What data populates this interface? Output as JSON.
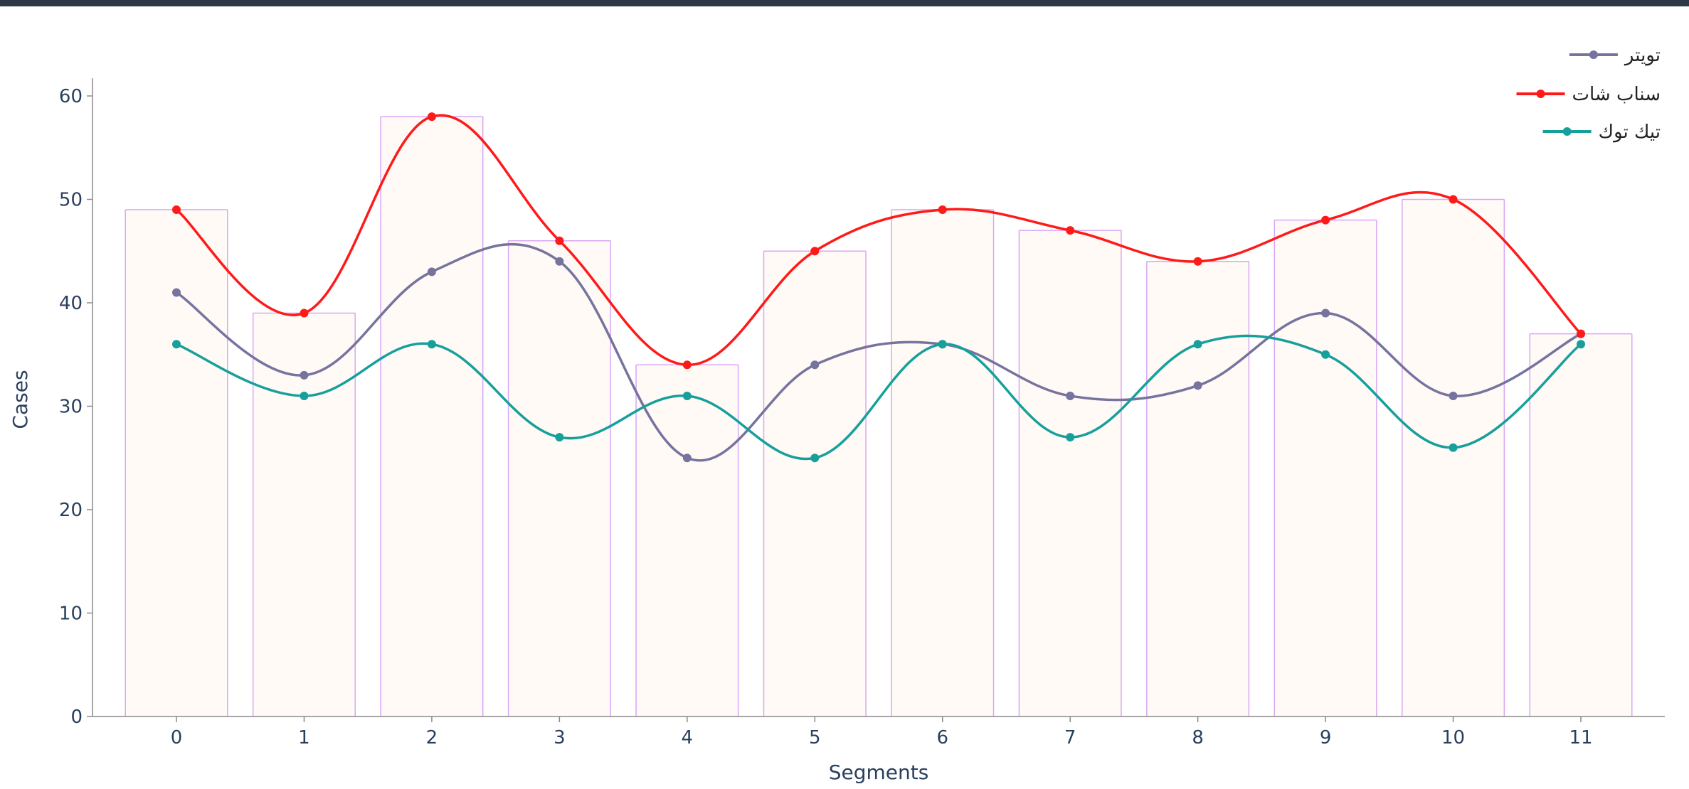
{
  "chart_data": {
    "type": "line",
    "xlabel": "Segments",
    "ylabel": "Cases",
    "categories": [
      0,
      1,
      2,
      3,
      4,
      5,
      6,
      7,
      8,
      9,
      10,
      11
    ],
    "ylim": [
      0,
      62
    ],
    "yticks": [
      0,
      10,
      20,
      30,
      40,
      50,
      60
    ],
    "grid": false,
    "legend_position": "top-right",
    "bars": {
      "values": [
        49,
        39,
        58,
        46,
        34,
        45,
        49,
        47,
        44,
        48,
        50,
        37
      ],
      "fill_color": "#fffaf5",
      "outline_color": "#d9a6f5"
    },
    "series": [
      {
        "name": "تويتر",
        "color": "#76739f",
        "values": [
          41,
          33,
          43,
          44,
          25,
          34,
          36,
          31,
          32,
          39,
          31,
          37
        ]
      },
      {
        "name": "سناب شات",
        "color": "#ff1a1a",
        "values": [
          49,
          39,
          58,
          46,
          34,
          45,
          49,
          47,
          44,
          48,
          50,
          37
        ]
      },
      {
        "name": "تيك توك",
        "color": "#17a09b",
        "values": [
          36,
          31,
          36,
          27,
          31,
          25,
          36,
          27,
          36,
          35,
          26,
          36
        ]
      }
    ]
  }
}
